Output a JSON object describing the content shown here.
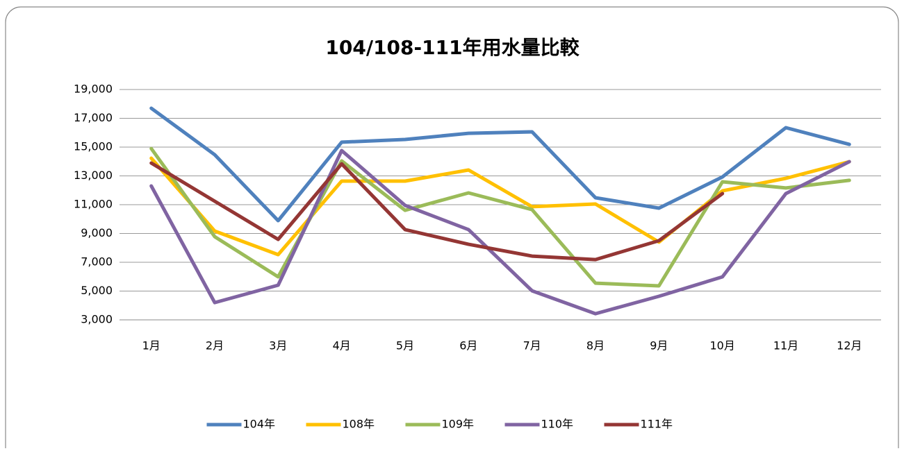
{
  "chart_data": {
    "type": "line",
    "title": "104/108-111年用水量比較",
    "categories": [
      "1月",
      "2月",
      "3月",
      "4月",
      "5月",
      "6月",
      "7月",
      "8月",
      "9月",
      "10月",
      "11月",
      "12月"
    ],
    "series": [
      {
        "name": "104年",
        "color": "#4f81bd",
        "values": [
          17700,
          14470,
          9890,
          15340,
          15530,
          15960,
          16060,
          11480,
          10760,
          12930,
          16350,
          15190
        ]
      },
      {
        "name": "108年",
        "color": "#ffc000",
        "values": [
          14230,
          9170,
          7530,
          12640,
          12640,
          13410,
          10860,
          11050,
          8400,
          11960,
          12830,
          13990
        ]
      },
      {
        "name": "109年",
        "color": "#9bbb59",
        "values": [
          14900,
          8780,
          5990,
          14040,
          10610,
          11820,
          10660,
          5550,
          5360,
          12590,
          12160,
          12690
        ]
      },
      {
        "name": "110年",
        "color": "#8064a2",
        "values": [
          12300,
          4200,
          5410,
          14760,
          10950,
          9270,
          5020,
          3430,
          4640,
          5990,
          11770,
          13990
        ]
      },
      {
        "name": "111年",
        "color": "#943634",
        "values": [
          13890,
          11240,
          8590,
          13840,
          9270,
          8250,
          7430,
          7190,
          8500,
          11770,
          null,
          null
        ]
      }
    ],
    "ylim": [
      3000,
      19000
    ],
    "yticks": [
      {
        "value": 3000,
        "label": "3,000"
      },
      {
        "value": 5000,
        "label": "5,000"
      },
      {
        "value": 7000,
        "label": "7,000"
      },
      {
        "value": 9000,
        "label": "9,000"
      },
      {
        "value": 11000,
        "label": "11,000"
      },
      {
        "value": 13000,
        "label": "13,000"
      },
      {
        "value": 15000,
        "label": "15,000"
      },
      {
        "value": 17000,
        "label": "17,000"
      },
      {
        "value": 19000,
        "label": "19,000"
      }
    ],
    "grid": true,
    "legend": "bottom"
  }
}
